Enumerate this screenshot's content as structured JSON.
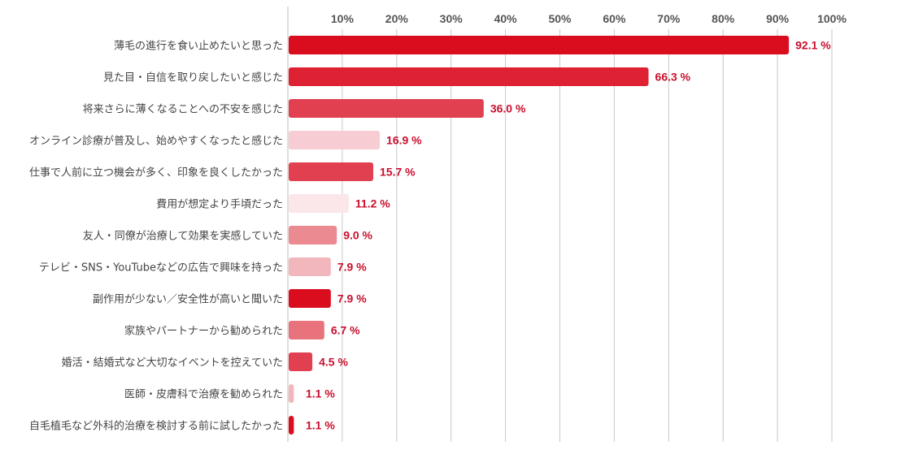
{
  "chart_data": {
    "type": "bar",
    "orientation": "horizontal",
    "categories": [
      "薄毛の進行を食い止めたいと思った",
      "見た目・自信を取り戻したいと感じた",
      "将来さらに薄くなることへの不安を感じた",
      "オンライン診療が普及し、始めやすくなったと感じた",
      "仕事で人前に立つ機会が多く、印象を良くしたかった",
      "費用が想定より手頃だった",
      "友人・同僚が治療して効果を実感していた",
      "テレビ・SNS・YouTubeなどの広告で興味を持った",
      "副作用が少ない／安全性が高いと聞いた",
      "家族やパートナーから勧められた",
      "婚活・結婚式など大切なイベントを控えていた",
      "医師・皮膚科で治療を勧められた",
      "自毛植毛など外科的治療を検討する前に試したかった"
    ],
    "values": [
      92.1,
      66.3,
      36.0,
      16.9,
      15.7,
      11.2,
      9.0,
      7.9,
      7.9,
      6.7,
      4.5,
      1.1,
      1.1
    ],
    "value_labels": [
      "92.1 %",
      "66.3 %",
      "36.0 %",
      "16.9 %",
      "15.7 %",
      "11.2 %",
      "9.0 %",
      "7.9 %",
      "7.9 %",
      "6.7 %",
      "4.5 %",
      "1.1 %",
      "1.1 %"
    ],
    "bar_colors": [
      "#d90d1e",
      "#de2233",
      "#e04050",
      "#f7ccd3",
      "#e04050",
      "#fbe6e9",
      "#ec8a92",
      "#f2b7bd",
      "#d90d1e",
      "#e8737d",
      "#e04050",
      "#f2b7bd",
      "#d90d1e"
    ],
    "xlim": [
      0,
      100
    ],
    "x_ticks": [
      10,
      20,
      30,
      40,
      50,
      60,
      70,
      80,
      90,
      100
    ],
    "x_tick_labels": [
      "10%",
      "20%",
      "30%",
      "40%",
      "50%",
      "60%",
      "70%",
      "80%",
      "90%",
      "100%"
    ],
    "axis_position": "top",
    "grid": true,
    "title": "",
    "xlabel": "",
    "ylabel": ""
  }
}
